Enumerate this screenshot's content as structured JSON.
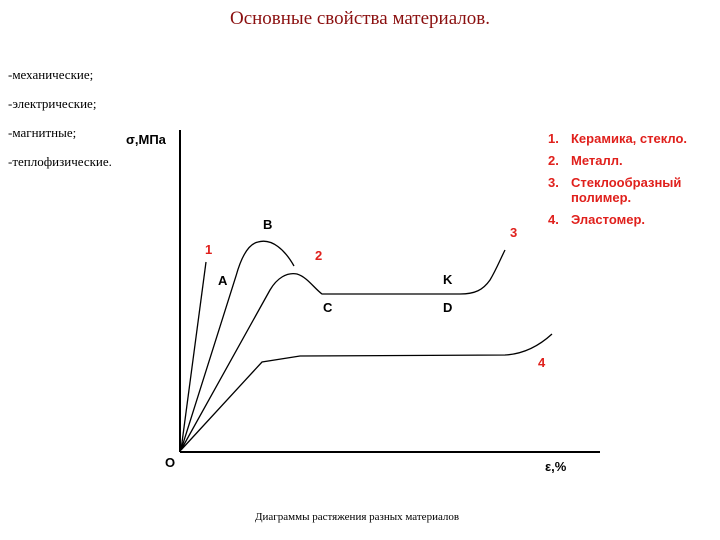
{
  "title": "Основные свойства материалов.",
  "properties": [
    "-механические;",
    "-электрические;",
    "-магнитные;",
    "-теплофизические."
  ],
  "diagram": {
    "y_axis_label": "σ,МПа",
    "x_axis_label": "ε,%",
    "origin_label": "O",
    "curve_labels": [
      "1",
      "2",
      "3",
      "4"
    ],
    "point_labels": {
      "A": "A",
      "B": "B",
      "C": "C",
      "D": "D",
      "K": "K"
    },
    "colors": {
      "highlight": "#e0201c",
      "title": "#8b1010",
      "line": "#000000"
    }
  },
  "legend": [
    {
      "num": "1.",
      "text": "Керамика, стекло."
    },
    {
      "num": "2.",
      "text": "Металл."
    },
    {
      "num": "3.",
      "text": "Стеклообразный полимер."
    },
    {
      "num": "4.",
      "text": "Эластомер."
    }
  ],
  "caption": "Диаграммы  растяжения разных материалов"
}
